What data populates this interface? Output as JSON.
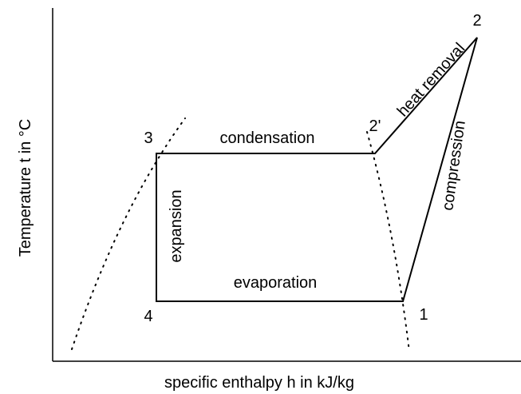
{
  "axes": {
    "x_label": "specific enthalpy h in kJ/kg",
    "y_label": "Temperature t in °C"
  },
  "points": {
    "p1": "1",
    "p2": "2",
    "p2prime": "2'",
    "p3": "3",
    "p4": "4"
  },
  "processes": {
    "condensation": "condensation",
    "evaporation": "evaporation",
    "expansion": "expansion",
    "compression": "compression",
    "heat_removal": "heat removal"
  }
}
